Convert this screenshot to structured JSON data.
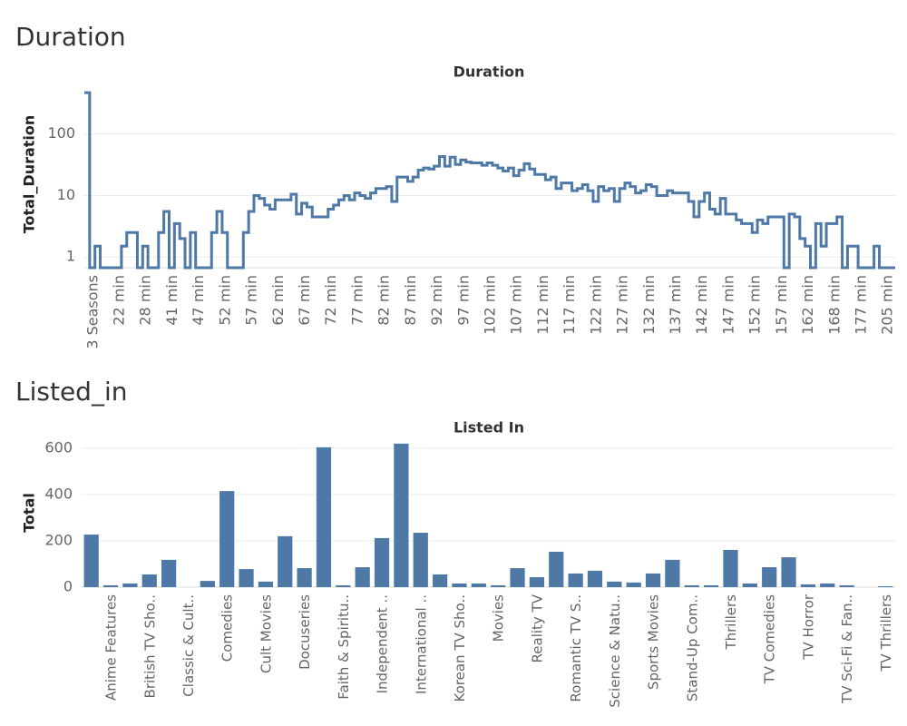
{
  "headings": [
    "Duration",
    "Listed_in"
  ],
  "chart_data": [
    {
      "type": "step",
      "title": "Duration",
      "y_label": "Total_Duration",
      "color": "#4e79a7",
      "log": true,
      "grid": true,
      "ylim": [
        0.67,
        600
      ],
      "yticks": [
        1,
        10,
        100
      ],
      "categories": [
        null,
        "3 Seasons",
        null,
        null,
        null,
        null,
        "22 min",
        null,
        null,
        null,
        null,
        "28 min",
        null,
        null,
        null,
        null,
        "41 min",
        null,
        null,
        null,
        null,
        "47 min",
        null,
        null,
        null,
        null,
        "52 min",
        null,
        null,
        null,
        null,
        "57 min",
        null,
        null,
        null,
        null,
        "62 min",
        null,
        null,
        null,
        null,
        "67 min",
        null,
        null,
        null,
        null,
        "72 min",
        null,
        null,
        null,
        null,
        "77 min",
        null,
        null,
        null,
        null,
        "82 min",
        null,
        null,
        null,
        null,
        "87 min",
        null,
        null,
        null,
        null,
        "92 min",
        null,
        null,
        null,
        null,
        "97 min",
        null,
        null,
        null,
        null,
        "102 min",
        null,
        null,
        null,
        null,
        "107 min",
        null,
        null,
        null,
        null,
        "112 min",
        null,
        null,
        null,
        null,
        "117 min",
        null,
        null,
        null,
        null,
        "122 min",
        null,
        null,
        null,
        null,
        "127 min",
        null,
        null,
        null,
        null,
        "132 min",
        null,
        null,
        null,
        null,
        "137 min",
        null,
        null,
        null,
        null,
        "142 min",
        null,
        null,
        null,
        null,
        "147 min",
        null,
        null,
        null,
        null,
        "152 min",
        null,
        null,
        null,
        null,
        "157 min",
        null,
        null,
        null,
        null,
        "162 min",
        null,
        null,
        null,
        null,
        "168 min",
        null,
        null,
        null,
        null,
        "177 min",
        null,
        null,
        null,
        null,
        "205 min",
        null
      ],
      "values": [
        470,
        0,
        1.5,
        0,
        0,
        0,
        0,
        1.5,
        2.5,
        2.5,
        0,
        1.5,
        0,
        0,
        2.5,
        5.5,
        0,
        3.5,
        2,
        0,
        2.5,
        0,
        0,
        0,
        2.5,
        5.5,
        2.5,
        0,
        0,
        0,
        2.5,
        5.5,
        10,
        9,
        7,
        6,
        8.5,
        8.5,
        8.5,
        10.5,
        5,
        7.5,
        6.5,
        4.5,
        4.5,
        4.5,
        6,
        7,
        8.5,
        10,
        8.5,
        11,
        10,
        9,
        11,
        13,
        13,
        14,
        8,
        20,
        20,
        17,
        20,
        26,
        28,
        27,
        30,
        43,
        30,
        42,
        32,
        38,
        35,
        34,
        34,
        31,
        34,
        31,
        28,
        25,
        28,
        21,
        26,
        33,
        27,
        22,
        22,
        18,
        20,
        13,
        16,
        16,
        12,
        13,
        15,
        12,
        8,
        14,
        12,
        13,
        8,
        13,
        16,
        14,
        11,
        12,
        15,
        14,
        10,
        10,
        12,
        11,
        11,
        11,
        8,
        4.5,
        8,
        11,
        6,
        5,
        9,
        5,
        5,
        4,
        3.5,
        3.5,
        2.5,
        4,
        3.5,
        4.5,
        4.5,
        4.5,
        0,
        5,
        4.5,
        2,
        1.5,
        0,
        3.5,
        1.5,
        3.5,
        3.5,
        4.5,
        0,
        1.5,
        1.5,
        0,
        0,
        0,
        1.5,
        0,
        0,
        0
      ]
    },
    {
      "type": "bar",
      "title": "Listed In",
      "y_label": "Total",
      "color": "#4e79a7",
      "grid": true,
      "ylim": [
        0,
        635
      ],
      "yticks": [
        0,
        200,
        400,
        600
      ],
      "categories": [
        null,
        "Anime Features",
        null,
        "British TV Sho..",
        null,
        "Classic & Cult..",
        null,
        "Comedies",
        null,
        "Cult Movies",
        null,
        "Docuseries",
        null,
        "Faith & Spiritu..",
        null,
        "Independent ..",
        null,
        "International ..",
        null,
        "Korean TV Sho..",
        null,
        "Movies",
        null,
        "Reality TV",
        null,
        "Romantic TV S..",
        null,
        "Science & Natu..",
        null,
        "Sports Movies",
        null,
        "Stand-Up Com..",
        null,
        "Thrillers",
        null,
        "TV Comedies",
        null,
        "TV Horror",
        null,
        "TV Sci-Fi & Fan..",
        null,
        "TV Thrillers"
      ],
      "values": [
        227,
        8,
        16,
        55,
        118,
        0,
        27,
        415,
        78,
        24,
        220,
        82,
        604,
        8,
        86,
        212,
        620,
        235,
        55,
        16,
        16,
        8,
        82,
        43,
        153,
        59,
        71,
        24,
        20,
        59,
        118,
        8,
        8,
        161,
        16,
        86,
        129,
        12,
        16,
        8,
        0,
        4
      ]
    }
  ]
}
